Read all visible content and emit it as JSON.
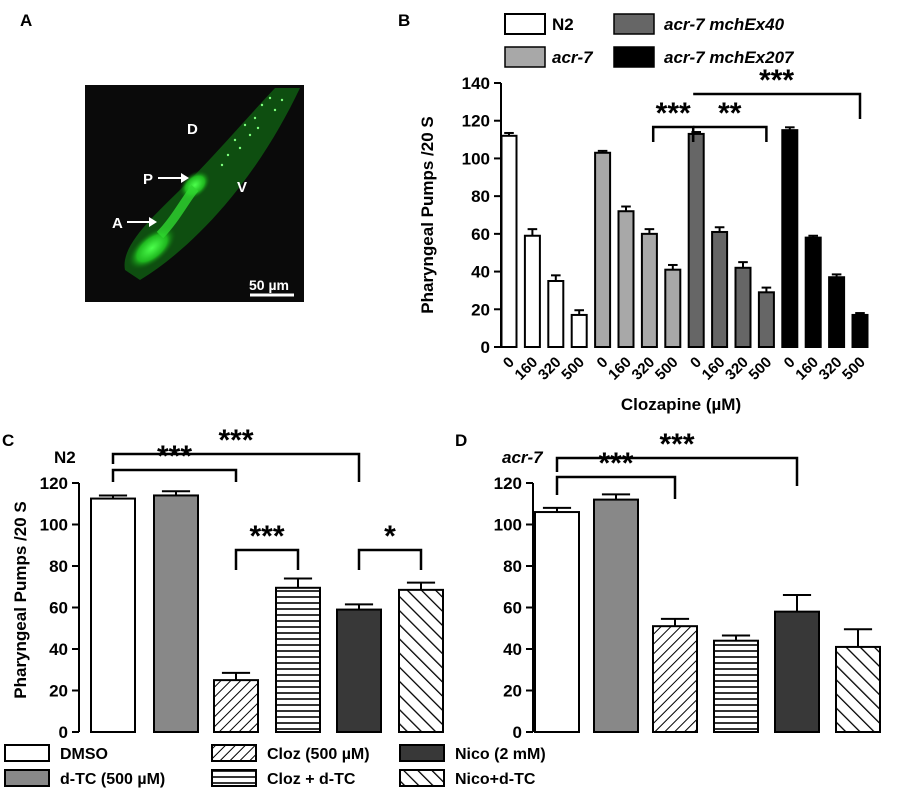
{
  "panels": {
    "a": {
      "letter": "A"
    },
    "b": {
      "letter": "B"
    },
    "c": {
      "letter": "C"
    },
    "d": {
      "letter": "D"
    }
  },
  "micrograph": {
    "labels": {
      "d": "D",
      "p": "P",
      "v": "V",
      "a": "A"
    },
    "scale_bar": "50 µm",
    "colors": {
      "background": "#0a0a0a",
      "fluorescence": "#2fd62f"
    }
  },
  "chart_data": [
    {
      "id": "B",
      "type": "bar",
      "ylabel": "Pharyngeal Pumps /20 S",
      "xlabel": "Clozapine (µM)",
      "ylim": [
        0,
        140
      ],
      "yticks": [
        0,
        20,
        40,
        60,
        80,
        100,
        120,
        140
      ],
      "categories": [
        "0",
        "160",
        "320",
        "500"
      ],
      "legend": {
        "placement": "top"
      },
      "series": [
        {
          "name": "N2",
          "italic": false,
          "color": "#ffffff",
          "values": [
            112,
            59,
            35,
            17
          ],
          "errors": [
            1.5,
            3.5,
            3,
            2.5
          ]
        },
        {
          "name": "acr-7",
          "italic": true,
          "color": "#a8a8a8",
          "values": [
            103,
            72,
            60,
            41
          ],
          "errors": [
            1,
            2.5,
            2.5,
            2.5
          ]
        },
        {
          "name": "acr-7 mchEx40",
          "italic": true,
          "color": "#666666",
          "values": [
            113,
            61,
            42,
            29
          ],
          "errors": [
            1,
            2.5,
            3,
            2.5
          ]
        },
        {
          "name": "acr-7 mchEx207",
          "italic": true,
          "color": "#000000",
          "values": [
            115,
            58,
            37,
            17
          ],
          "errors": [
            1.5,
            1,
            1.5,
            1
          ]
        }
      ],
      "significance": [
        {
          "label": "***",
          "from": "N2 500",
          "to": "mchEx40 0"
        },
        {
          "label": "**",
          "from": "mchEx40 0",
          "to": "mchEx40 500"
        },
        {
          "label": "***",
          "from": "mchEx40 0",
          "to": "mchEx207 500"
        }
      ]
    },
    {
      "id": "C",
      "type": "bar",
      "strain": "N2",
      "ylabel": "Pharyngeal Pumps /20 S",
      "ylim": [
        0,
        120
      ],
      "yticks": [
        0,
        20,
        40,
        60,
        80,
        100,
        120
      ],
      "categories": [
        "DMSO",
        "d-TC (500 µM)",
        "Cloz (500 µM)",
        "Cloz + d-TC",
        "Nico (2 mM)",
        "Nico+d-TC"
      ],
      "values": [
        112.5,
        114,
        25,
        69.5,
        59,
        68.5
      ],
      "errors": [
        1.5,
        2,
        3.5,
        4.5,
        2.5,
        3.5
      ],
      "significance": [
        {
          "label": "***",
          "from": "DMSO",
          "to": "Cloz (500 µM)"
        },
        {
          "label": "***",
          "from": "DMSO",
          "to": "Nico (2 mM)"
        },
        {
          "label": "***",
          "from": "Cloz (500 µM)",
          "to": "Cloz + d-TC"
        },
        {
          "label": "*",
          "from": "Nico (2 mM)",
          "to": "Nico+d-TC"
        }
      ]
    },
    {
      "id": "D",
      "type": "bar",
      "strain": "acr-7",
      "ylim": [
        0,
        120
      ],
      "yticks": [
        0,
        20,
        40,
        60,
        80,
        100,
        120
      ],
      "categories": [
        "DMSO",
        "d-TC (500 µM)",
        "Cloz (500 µM)",
        "Cloz + d-TC",
        "Nico (2 mM)",
        "Nico+d-TC"
      ],
      "values": [
        106,
        112,
        51,
        44,
        58,
        41
      ],
      "errors": [
        2,
        2.5,
        3.5,
        2.5,
        8,
        8.5
      ],
      "significance": [
        {
          "label": "***",
          "from": "DMSO",
          "to": "Cloz (500 µM)"
        },
        {
          "label": "***",
          "from": "DMSO",
          "to": "Nico (2 mM)"
        }
      ]
    }
  ],
  "legend_cd": [
    {
      "label": "DMSO",
      "fill": "white"
    },
    {
      "label": "d-TC (500 µM)",
      "fill": "gray"
    },
    {
      "label": "Cloz (500 µM)",
      "fill": "diag-dense"
    },
    {
      "label": "Cloz + d-TC",
      "fill": "horizontal"
    },
    {
      "label": "Nico (2 mM)",
      "fill": "dark"
    },
    {
      "label": "Nico+d-TC",
      "fill": "diag-back"
    }
  ]
}
